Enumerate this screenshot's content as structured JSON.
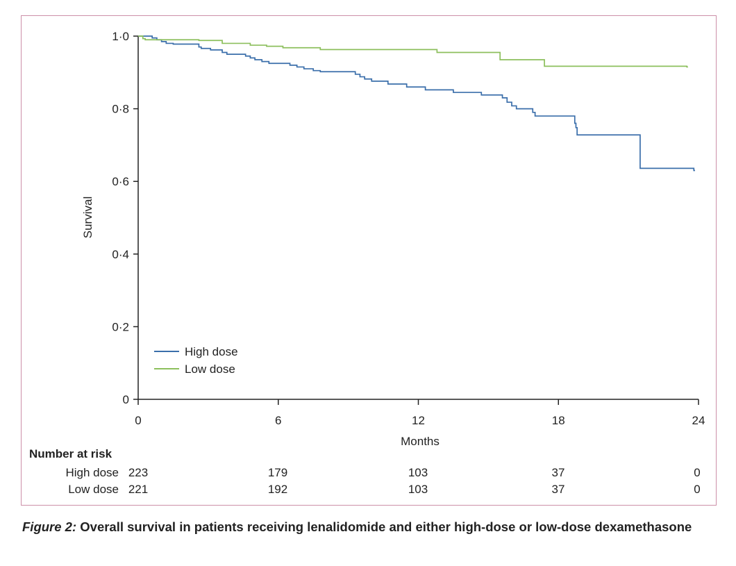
{
  "chart_data": {
    "type": "line",
    "step": true,
    "xlabel": "Months",
    "ylabel": "Survival",
    "xlim": [
      0,
      24
    ],
    "ylim": [
      0,
      1.0
    ],
    "x_ticks": [
      0,
      6,
      12,
      18,
      24
    ],
    "x_tick_labels": [
      "0",
      "6",
      "12",
      "18",
      "24"
    ],
    "y_ticks": [
      0,
      0.2,
      0.4,
      0.6,
      0.8,
      1.0
    ],
    "y_tick_labels": [
      "0",
      "0·2",
      "0·4",
      "0·6",
      "0·8",
      "1·0"
    ],
    "legend_position": "bottom-left",
    "series": [
      {
        "name": "High dose",
        "color": "#3a6eaa",
        "points": [
          [
            0,
            1.0
          ],
          [
            0.6,
            0.995
          ],
          [
            0.8,
            0.99
          ],
          [
            1.0,
            0.985
          ],
          [
            1.2,
            0.98
          ],
          [
            1.5,
            0.978
          ],
          [
            2.6,
            0.97
          ],
          [
            2.7,
            0.966
          ],
          [
            3.1,
            0.962
          ],
          [
            3.6,
            0.955
          ],
          [
            3.8,
            0.95
          ],
          [
            4.6,
            0.945
          ],
          [
            4.8,
            0.94
          ],
          [
            5.0,
            0.935
          ],
          [
            5.3,
            0.93
          ],
          [
            5.6,
            0.925
          ],
          [
            6.5,
            0.92
          ],
          [
            6.8,
            0.915
          ],
          [
            7.1,
            0.91
          ],
          [
            7.5,
            0.905
          ],
          [
            7.8,
            0.902
          ],
          [
            9.3,
            0.895
          ],
          [
            9.5,
            0.888
          ],
          [
            9.7,
            0.882
          ],
          [
            10.0,
            0.876
          ],
          [
            10.7,
            0.868
          ],
          [
            11.5,
            0.86
          ],
          [
            12.3,
            0.852
          ],
          [
            13.5,
            0.845
          ],
          [
            14.7,
            0.838
          ],
          [
            15.6,
            0.83
          ],
          [
            15.8,
            0.818
          ],
          [
            16.0,
            0.808
          ],
          [
            16.2,
            0.8
          ],
          [
            16.9,
            0.79
          ],
          [
            17.0,
            0.78
          ],
          [
            18.7,
            0.76
          ],
          [
            18.75,
            0.748
          ],
          [
            18.8,
            0.728
          ],
          [
            21.5,
            0.636
          ],
          [
            23.8,
            0.63
          ]
        ],
        "end_x": 23.85
      },
      {
        "name": "Low dose",
        "color": "#8cbf5c",
        "points": [
          [
            0,
            1.0
          ],
          [
            0.2,
            0.993
          ],
          [
            0.3,
            0.99
          ],
          [
            2.6,
            0.988
          ],
          [
            3.6,
            0.98
          ],
          [
            4.8,
            0.975
          ],
          [
            5.5,
            0.972
          ],
          [
            6.2,
            0.968
          ],
          [
            7.8,
            0.963
          ],
          [
            12.8,
            0.955
          ],
          [
            15.5,
            0.935
          ],
          [
            17.4,
            0.917
          ],
          [
            23.5,
            0.915
          ]
        ],
        "end_x": 23.55
      }
    ]
  },
  "risk_table": {
    "title": "Number at risk",
    "rows": [
      {
        "label": "High dose",
        "values": [
          "223",
          "179",
          "103",
          "37",
          "0"
        ]
      },
      {
        "label": "Low dose",
        "values": [
          "221",
          "192",
          "103",
          "37",
          "0"
        ]
      }
    ]
  },
  "caption": {
    "figure_label": "Figure 2:",
    "text": " Overall survival in patients receiving lenalidomide and either high-dose or low-dose dexamethasone"
  }
}
